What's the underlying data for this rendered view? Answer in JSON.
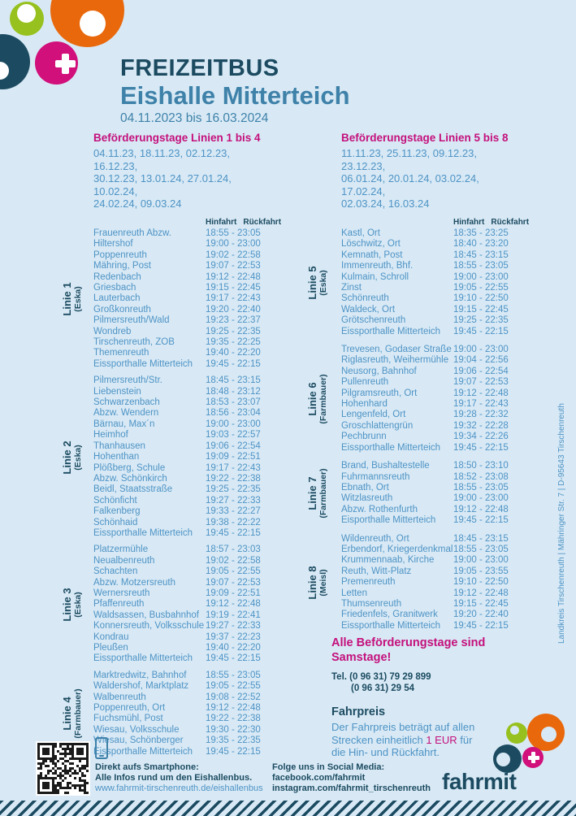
{
  "header": {
    "title": "FREIZEITBUS",
    "subtitle": "Eishalle Mitterteich",
    "date_range": "04.11.2023 bis 16.03.2024"
  },
  "table_headers": {
    "hinfahrt": "Hinfahrt",
    "rueckfahrt": "Rückfahrt"
  },
  "columns": [
    {
      "heading": "Beförderungstage Linien 1 bis 4",
      "dates": [
        "04.11.23, 18.11.23, 02.12.23, 16.12.23,",
        "30.12.23, 13.01.24, 27.01.24, 10.02.24,",
        "24.02.24, 09.03.24"
      ],
      "lines": [
        {
          "name": "Linie 1",
          "operator": "(Eska)",
          "stops": [
            {
              "stop": "Frauenreuth Abzw.",
              "times": "18:55 - 23:05"
            },
            {
              "stop": "Hiltershof",
              "times": "19:00 - 23:00"
            },
            {
              "stop": "Poppenreuth",
              "times": "19:02 - 22:58"
            },
            {
              "stop": "Mähring, Post",
              "times": "19:07 - 22:53"
            },
            {
              "stop": "Redenbach",
              "times": "19:12 - 22:48"
            },
            {
              "stop": "Griesbach",
              "times": "19:15 - 22:45"
            },
            {
              "stop": "Lauterbach",
              "times": "19:17 - 22:43"
            },
            {
              "stop": "Großkonreuth",
              "times": "19:20 - 22:40"
            },
            {
              "stop": "Pilmersreuth/Wald",
              "times": "19:23 - 22:37"
            },
            {
              "stop": "Wondreb",
              "times": "19:25 - 22:35"
            },
            {
              "stop": "Tirschenreuth, ZOB",
              "times": "19:35 - 22:25"
            },
            {
              "stop": "Themenreuth",
              "times": "19:40 - 22:20"
            },
            {
              "stop": "Eissporthalle Mitterteich",
              "times": "19:45 - 22:15"
            }
          ]
        },
        {
          "name": "Linie 2",
          "operator": "(Eska)",
          "stops": [
            {
              "stop": "Pilmersreuth/Str.",
              "times": "18:45 - 23:15"
            },
            {
              "stop": "Liebenstein",
              "times": "18:48 - 23:12"
            },
            {
              "stop": "Schwarzenbach",
              "times": "18:53 - 23:07"
            },
            {
              "stop": "Abzw. Wendern",
              "times": "18:56 - 23:04"
            },
            {
              "stop": "Bärnau, Max´n",
              "times": "19:00 - 23:00"
            },
            {
              "stop": "Heimhof",
              "times": "19:03 - 22:57"
            },
            {
              "stop": "Thanhausen",
              "times": "19:06 - 22:54"
            },
            {
              "stop": "Hohenthan",
              "times": "19:09 - 22:51"
            },
            {
              "stop": "Plößberg, Schule",
              "times": "19:17 - 22:43"
            },
            {
              "stop": "Abzw. Schönkirch",
              "times": "19:22 - 22:38"
            },
            {
              "stop": "Beidl, Staatsstraße",
              "times": "19:25 - 22:35"
            },
            {
              "stop": "Schönficht",
              "times": "19:27 - 22:33"
            },
            {
              "stop": "Falkenberg",
              "times": "19:33 - 22:27"
            },
            {
              "stop": "Schönhaid",
              "times": "19:38 - 22:22"
            },
            {
              "stop": "Eissporthalle Mitterteich",
              "times": "19:45 - 22:15"
            }
          ]
        },
        {
          "name": "Linie 3",
          "operator": "(Eska)",
          "stops": [
            {
              "stop": "Platzermühle",
              "times": "18:57 - 23:03"
            },
            {
              "stop": "Neualbenreuth",
              "times": "19:02 - 22:58"
            },
            {
              "stop": "Schachten",
              "times": "19:05 - 22:55"
            },
            {
              "stop": "Abzw. Motzersreuth",
              "times": "19:07 - 22:53"
            },
            {
              "stop": "Wernersreuth",
              "times": "19:09 - 22:51"
            },
            {
              "stop": "Pfaffenreuth",
              "times": "19:12 - 22:48"
            },
            {
              "stop": "Waldsassen, Busbahnhof",
              "times": "19:19 - 22:41"
            },
            {
              "stop": "Konnersreuth, Volksschule",
              "times": "19:27 - 22:33"
            },
            {
              "stop": "Kondrau",
              "times": "19:37 - 22:23"
            },
            {
              "stop": "Pleußen",
              "times": "19:40 - 22:20"
            },
            {
              "stop": "Eissporthalle Mitterteich",
              "times": "19:45 - 22:15"
            }
          ]
        },
        {
          "name": "Linie 4",
          "operator": "(Farmbauer)",
          "stops": [
            {
              "stop": "Marktredwitz, Bahnhof",
              "times": "18:55 - 23:05"
            },
            {
              "stop": "Waldershof, Marktplatz",
              "times": "19:05 - 22:55"
            },
            {
              "stop": "Walbenreuth",
              "times": "19:08 - 22:52"
            },
            {
              "stop": "Poppenreuth, Ort",
              "times": "19:12 - 22:48"
            },
            {
              "stop": "Fuchsmühl, Post",
              "times": "19:22 - 22:38"
            },
            {
              "stop": "Wiesau, Volksschule",
              "times": "19:30 - 22:30"
            },
            {
              "stop": "Wiesau, Schönberger",
              "times": "19:35 - 22:35"
            },
            {
              "stop": "Eissporthalle Mitterteich",
              "times": "19:45 - 22:15"
            }
          ]
        }
      ]
    },
    {
      "heading": "Beförderungstage Linien 5 bis 8",
      "dates": [
        "11.11.23, 25.11.23, 09.12.23, 23.12.23,",
        "06.01.24, 20.01.24, 03.02.24, 17.02.24,",
        "02.03.24, 16.03.24"
      ],
      "lines": [
        {
          "name": "Linie 5",
          "operator": "(Eska)",
          "stops": [
            {
              "stop": "Kastl, Ort",
              "times": "18:35 - 23:25"
            },
            {
              "stop": "Löschwitz, Ort",
              "times": "18:40 - 23:20"
            },
            {
              "stop": "Kemnath, Post",
              "times": "18:45 - 23:15"
            },
            {
              "stop": "Immenreuth, Bhf.",
              "times": "18:55 - 23:05"
            },
            {
              "stop": "Kulmain, Schroll",
              "times": "19:00 - 23:00"
            },
            {
              "stop": "Zinst",
              "times": "19:05 - 22:55"
            },
            {
              "stop": "Schönreuth",
              "times": "19:10 - 22:50"
            },
            {
              "stop": "Waldeck, Ort",
              "times": "19:15 - 22:45"
            },
            {
              "stop": "Grötschenreuth",
              "times": "19:25 - 22:35"
            },
            {
              "stop": "Eissporthalle Mitterteich",
              "times": "19:45 - 22:15"
            }
          ]
        },
        {
          "name": "Linie 6",
          "operator": "(Farmbauer)",
          "stops": [
            {
              "stop": "Trevesen, Godaser Straße",
              "times": "19:00 - 23:00"
            },
            {
              "stop": "Riglasreuth, Weihermühle",
              "times": "19:04 - 22:56"
            },
            {
              "stop": "Neusorg, Bahnhof",
              "times": "19:06 - 22:54"
            },
            {
              "stop": "Pullenreuth",
              "times": "19:07 - 22:53"
            },
            {
              "stop": "Pilgramsreuth, Ort",
              "times": "19:12 - 22:48"
            },
            {
              "stop": "Hohenhard",
              "times": "19:17 - 22:43"
            },
            {
              "stop": "Lengenfeld, Ort",
              "times": "19:28 - 22:32"
            },
            {
              "stop": "Groschlattengrün",
              "times": "19:32 - 22:28"
            },
            {
              "stop": "Pechbrunn",
              "times": "19:34 - 22:26"
            },
            {
              "stop": "Eissporthalle Mitterteich",
              "times": "19:45 - 22:15"
            }
          ]
        },
        {
          "name": "Linie 7",
          "operator": "(Farmbauer)",
          "stops": [
            {
              "stop": "Brand, Bushaltestelle",
              "times": "18:50 - 23:10"
            },
            {
              "stop": "Fuhrmannsreuth",
              "times": "18:52 - 23:08"
            },
            {
              "stop": "Ebnath, Ort",
              "times": "18:55 - 23:05"
            },
            {
              "stop": "Witzlasreuth",
              "times": "19:00 - 23:00"
            },
            {
              "stop": "Abzw. Rothenfurth",
              "times": "19:12 - 22:48"
            },
            {
              "stop": "Eisporthalle Mitterteich",
              "times": "19:45 - 22:15"
            }
          ]
        },
        {
          "name": "Linie 8",
          "operator": "(Meisl)",
          "stops": [
            {
              "stop": "Wildenreuth, Ort",
              "times": "18:45 - 23:15"
            },
            {
              "stop": "Erbendorf, Kriegerdenkmal",
              "times": "18:55 - 23:05"
            },
            {
              "stop": "Krummennaab, Kirche",
              "times": "19:00 - 23:00"
            },
            {
              "stop": "Reuth, Witt-Platz",
              "times": "19:05 - 23:55"
            },
            {
              "stop": "Premenreuth",
              "times": "19:10 - 22:50"
            },
            {
              "stop": "Letten",
              "times": "19:12 - 22:48"
            },
            {
              "stop": "Thumsenreuth",
              "times": "19:15 - 22:45"
            },
            {
              "stop": "Friedenfels, Granitwerk",
              "times": "19:20 - 22:40"
            },
            {
              "stop": "Eissporthalle Mitterteich",
              "times": "19:45 - 22:15"
            }
          ]
        }
      ]
    }
  ],
  "notice": {
    "samstage": "Alle Beförderungstage sind Samstage!",
    "tel_line1": "Tel. (0 96 31) 79 29 899",
    "tel_line2": "(0 96 31) 29 54",
    "fahrpreis_title": "Fahrpreis",
    "fahrpreis_line1": "Der Fahrpreis beträgt auf allen",
    "fahrpreis_line2_pre": "Strecken einheitlich ",
    "fahrpreis_price": "1 EUR",
    "fahrpreis_line2_post": " für",
    "fahrpreis_line3": "die Hin- und Rückfahrt."
  },
  "footer": {
    "smartphone_title": "Direkt aufs Smartphone:",
    "smartphone_line": "Alle Infos rund um den Eishallenbus.",
    "smartphone_url": "www.fahrmit-tirschenreuth.de/eishallenbus",
    "social_title": "Folge uns in Social Media:",
    "social_facebook": "facebook.com/fahrmit",
    "social_instagram": "instagram.com/fahrmit_tirschenreuth",
    "logo_text": "fahrmit"
  },
  "sidebar_vertical_text": "Landkreis Tirschenreuth | Mähringer Str. 7 | D-95643 Tirschenreuth",
  "colors": {
    "background": "#D8E9F5",
    "dark_teal": "#1C4B61",
    "subtitle_blue": "#3E81A9",
    "body_blue": "#4E93C5",
    "accent_magenta": "#C4107C",
    "green": "#97C11E",
    "orange": "#E9680C",
    "pink": "#D1107B"
  }
}
